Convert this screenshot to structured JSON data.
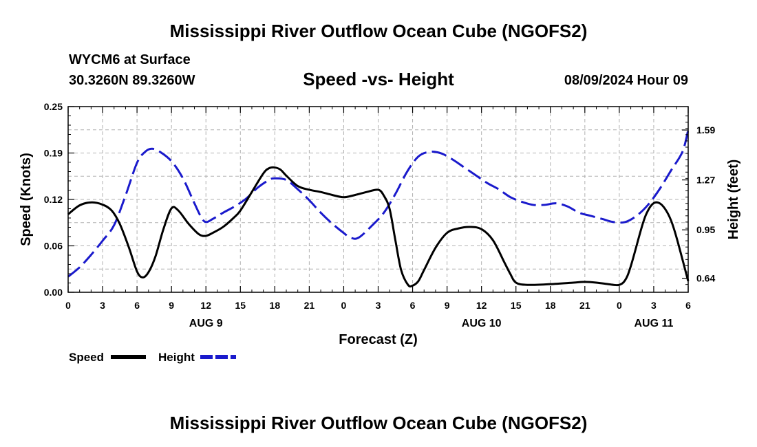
{
  "header": {
    "title_top": "Mississippi River Outflow Ocean Cube (NGOFS2)",
    "station": "WYCM6 at Surface",
    "coords": "30.3260N  89.3260W",
    "subtitle": "Speed -vs- Height",
    "datetime": "08/09/2024 Hour 09",
    "title_bottom": "Mississippi River Outflow Ocean Cube (NGOFS2)"
  },
  "colors": {
    "speed": "#000000",
    "height": "#1a1acc",
    "grid": "#b0b0b0"
  },
  "chart_data": {
    "type": "line",
    "xlabel": "Forecast (Z)",
    "ylabel": "Speed (Knots)",
    "y2label": "Height (feet)",
    "x_ticks": [
      {
        "x": 0,
        "label": "0"
      },
      {
        "x": 3,
        "label": "3"
      },
      {
        "x": 6,
        "label": "6"
      },
      {
        "x": 9,
        "label": "9"
      },
      {
        "x": 12,
        "label": "12"
      },
      {
        "x": 15,
        "label": "15"
      },
      {
        "x": 18,
        "label": "18"
      },
      {
        "x": 21,
        "label": "21"
      },
      {
        "x": 24,
        "label": "0"
      },
      {
        "x": 27,
        "label": "3"
      },
      {
        "x": 30,
        "label": "6"
      },
      {
        "x": 33,
        "label": "9"
      },
      {
        "x": 36,
        "label": "12"
      },
      {
        "x": 39,
        "label": "15"
      },
      {
        "x": 42,
        "label": "18"
      },
      {
        "x": 45,
        "label": "21"
      },
      {
        "x": 48,
        "label": "0"
      },
      {
        "x": 51,
        "label": "3"
      },
      {
        "x": 54,
        "label": "6"
      }
    ],
    "date_labels": [
      {
        "x": 12,
        "label": "AUG 9"
      },
      {
        "x": 36,
        "label": "AUG 10"
      },
      {
        "x": 51,
        "label": "AUG 11"
      }
    ],
    "xlim": [
      0,
      54
    ],
    "ylim": [
      0,
      0.25
    ],
    "y_ticks": [
      {
        "v": 0.0,
        "label": "0.00"
      },
      {
        "v": 0.0625,
        "label": "0.06"
      },
      {
        "v": 0.125,
        "label": "0.12"
      },
      {
        "v": 0.1875,
        "label": "0.19"
      },
      {
        "v": 0.25,
        "label": "0.25"
      }
    ],
    "y2lim": [
      0.55,
      1.74
    ],
    "y2_ticks": [
      {
        "v": 0.64,
        "label": "0.64"
      },
      {
        "v": 0.95,
        "label": "0.95"
      },
      {
        "v": 1.27,
        "label": "1.27"
      },
      {
        "v": 1.59,
        "label": "1.59"
      }
    ],
    "series": [
      {
        "name": "Speed",
        "axis": "left",
        "x": [
          0,
          1,
          2,
          3,
          3.8,
          4.5,
          5.3,
          6,
          6.5,
          7,
          7.6,
          8.3,
          9,
          9.6,
          10.5,
          11.4,
          12,
          12.6,
          13.5,
          14.4,
          15,
          16,
          17,
          17.5,
          18,
          18.5,
          19,
          20,
          21,
          22,
          23,
          24,
          25,
          26,
          27,
          27.5,
          28,
          28.5,
          29,
          29.6,
          30,
          30.5,
          31,
          32,
          33,
          34,
          35,
          36,
          37,
          38,
          38.5,
          39,
          40,
          42,
          44,
          45,
          46,
          47,
          47.5,
          48,
          48.5,
          49,
          50,
          50.5,
          51,
          51.5,
          52,
          52.5,
          53,
          54
        ],
        "values": [
          0.105,
          0.117,
          0.121,
          0.118,
          0.11,
          0.092,
          0.06,
          0.028,
          0.02,
          0.027,
          0.048,
          0.085,
          0.113,
          0.11,
          0.092,
          0.078,
          0.076,
          0.08,
          0.088,
          0.1,
          0.11,
          0.135,
          0.16,
          0.167,
          0.168,
          0.165,
          0.157,
          0.143,
          0.138,
          0.135,
          0.131,
          0.128,
          0.131,
          0.135,
          0.138,
          0.13,
          0.112,
          0.07,
          0.03,
          0.01,
          0.009,
          0.015,
          0.03,
          0.06,
          0.08,
          0.086,
          0.088,
          0.085,
          0.07,
          0.04,
          0.025,
          0.013,
          0.01,
          0.011,
          0.013,
          0.014,
          0.013,
          0.011,
          0.01,
          0.01,
          0.016,
          0.035,
          0.09,
          0.11,
          0.12,
          0.12,
          0.112,
          0.097,
          0.073,
          0.015
        ]
      },
      {
        "name": "Height",
        "axis": "right",
        "x": [
          0,
          1,
          2,
          3,
          4,
          5,
          6,
          6.7,
          7.3,
          8,
          9,
          10,
          11,
          11.6,
          12,
          12.6,
          13.5,
          14.5,
          15.5,
          16.5,
          17.5,
          18,
          19,
          20,
          21,
          22,
          23,
          24,
          24.6,
          25.3,
          26.5,
          27.5,
          28.5,
          29.5,
          30.5,
          31.5,
          32.5,
          33.5,
          34.5,
          35.5,
          36.5,
          37.5,
          38.5,
          39.5,
          40.5,
          41.5,
          42.5,
          43.5,
          44.5,
          45.5,
          46.5,
          47.5,
          48.5,
          49.5,
          50.5,
          51.5,
          52.5,
          53.5,
          54
        ],
        "values": [
          0.65,
          0.71,
          0.79,
          0.88,
          0.98,
          1.17,
          1.38,
          1.45,
          1.47,
          1.45,
          1.39,
          1.28,
          1.12,
          1.03,
          1.0,
          1.02,
          1.06,
          1.1,
          1.15,
          1.22,
          1.27,
          1.28,
          1.27,
          1.21,
          1.14,
          1.06,
          0.99,
          0.93,
          0.9,
          0.9,
          0.98,
          1.06,
          1.18,
          1.32,
          1.42,
          1.45,
          1.44,
          1.4,
          1.35,
          1.3,
          1.25,
          1.21,
          1.16,
          1.13,
          1.11,
          1.11,
          1.12,
          1.1,
          1.06,
          1.04,
          1.02,
          1.0,
          1.0,
          1.04,
          1.11,
          1.21,
          1.33,
          1.45,
          1.59
        ]
      }
    ],
    "legend": {
      "position": "bottom-left",
      "entries": [
        "Speed",
        "Height"
      ]
    }
  }
}
